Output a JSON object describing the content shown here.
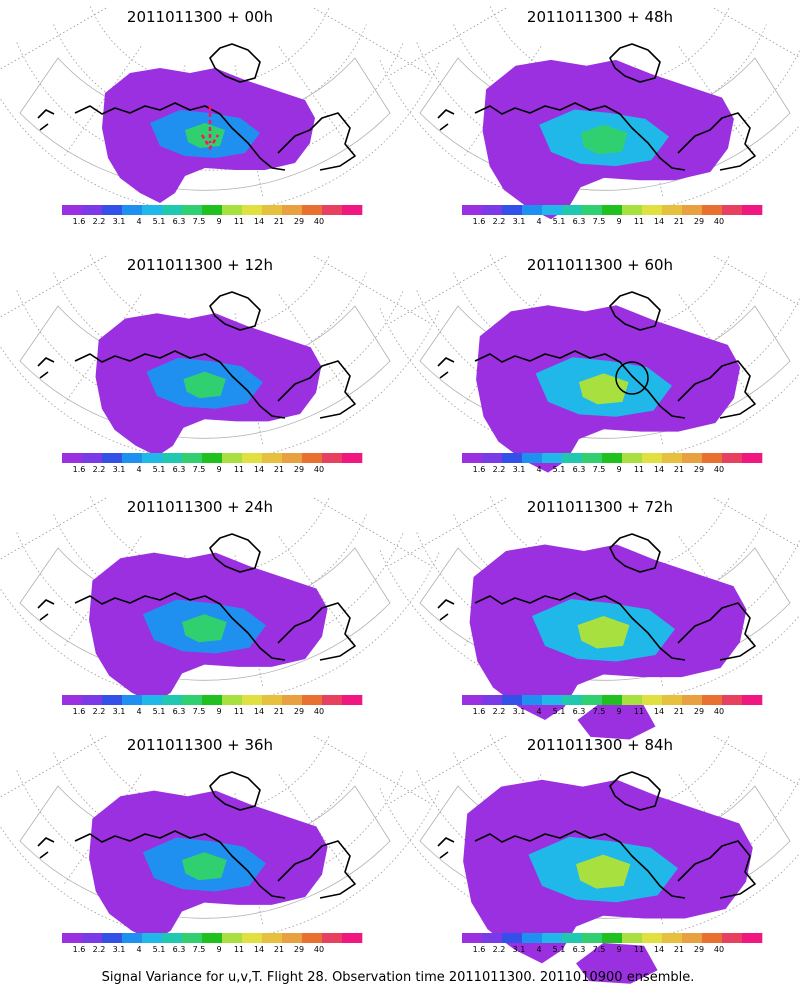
{
  "caption": "Signal Variance for u,v,T. Flight 28. Observation time 2011011300. 2011010900 ensemble.",
  "colorbar": {
    "colors": [
      "#9b30e0",
      "#7a3ae8",
      "#3350e8",
      "#2090f0",
      "#20b8e8",
      "#20c8b0",
      "#30d070",
      "#20c020",
      "#a8e040",
      "#e0e040",
      "#e8c040",
      "#e8a040",
      "#e87030",
      "#e84060",
      "#f01880"
    ],
    "labels": [
      "1.6",
      "2.2",
      "3.1",
      "4",
      "5.1",
      "6.3",
      "7.5",
      "9",
      "11",
      "14",
      "21",
      "29",
      "40"
    ]
  },
  "panels": [
    {
      "title": "2011011300 + 00h",
      "level": 0,
      "marker": "arrow"
    },
    {
      "title": "2011011300 + 48h",
      "level": 3,
      "marker": ""
    },
    {
      "title": "2011011300 + 12h",
      "level": 1,
      "marker": ""
    },
    {
      "title": "2011011300 + 60h",
      "level": 4,
      "marker": "circle"
    },
    {
      "title": "2011011300 + 24h",
      "level": 2,
      "marker": ""
    },
    {
      "title": "2011011300 + 72h",
      "level": 5,
      "marker": ""
    },
    {
      "title": "2011011300 + 36h",
      "level": 2,
      "marker": ""
    },
    {
      "title": "2011011300 + 84h",
      "level": 6,
      "marker": ""
    }
  ]
}
